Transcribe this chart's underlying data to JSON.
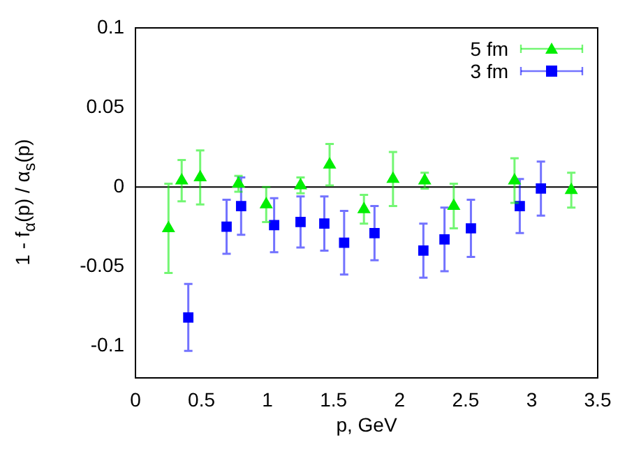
{
  "chart_data": {
    "type": "scatter",
    "xlabel": "p, GeV",
    "ylabel": "1 - f$_{α}$(p) / α$_{s}$(p)",
    "xlim": [
      0,
      3.5
    ],
    "xticks": [
      0,
      0.5,
      1,
      1.5,
      2,
      2.5,
      3,
      3.5
    ],
    "ylim": [
      -0.12,
      0.1
    ],
    "yticks": [
      {
        "value": 0.1,
        "label": "0.1"
      },
      {
        "value": 0.05,
        "label": "0.05"
      },
      {
        "value": 0,
        "label": "0"
      },
      {
        "value": -0.05,
        "label": "-0.05"
      },
      {
        "value": -0.1,
        "label": "-0.1"
      }
    ],
    "grid": false,
    "legend": "top right",
    "ref_lines": [
      {
        "axis": "y",
        "value": 0,
        "color": "#000000"
      }
    ],
    "series": [
      {
        "name": "5 fm",
        "color": "#00ee00",
        "marker": "triangle",
        "x": [
          0.25,
          0.35,
          0.49,
          0.78,
          0.99,
          1.25,
          1.47,
          1.73,
          1.95,
          2.19,
          2.41,
          2.87,
          3.3
        ],
        "values": [
          -0.026,
          0.004,
          0.006,
          0.002,
          -0.011,
          0.001,
          0.014,
          -0.014,
          0.005,
          0.004,
          -0.012,
          0.004,
          -0.002
        ],
        "errors": [
          0.028,
          0.013,
          0.017,
          0.005,
          0.011,
          0.005,
          0.013,
          0.009,
          0.017,
          0.005,
          0.014,
          0.014,
          0.011
        ]
      },
      {
        "name": "3 fm",
        "color": "#0000ff",
        "marker": "square",
        "x": [
          0.4,
          0.69,
          0.8,
          1.05,
          1.25,
          1.43,
          1.58,
          1.81,
          2.18,
          2.34,
          2.54,
          2.91,
          3.07
        ],
        "values": [
          -0.082,
          -0.025,
          -0.012,
          -0.024,
          -0.022,
          -0.023,
          -0.035,
          -0.029,
          -0.04,
          -0.033,
          -0.026,
          -0.012,
          -0.001
        ],
        "errors": [
          0.021,
          0.017,
          0.018,
          0.017,
          0.016,
          0.017,
          0.02,
          0.017,
          0.017,
          0.02,
          0.018,
          0.017,
          0.017
        ]
      }
    ]
  }
}
